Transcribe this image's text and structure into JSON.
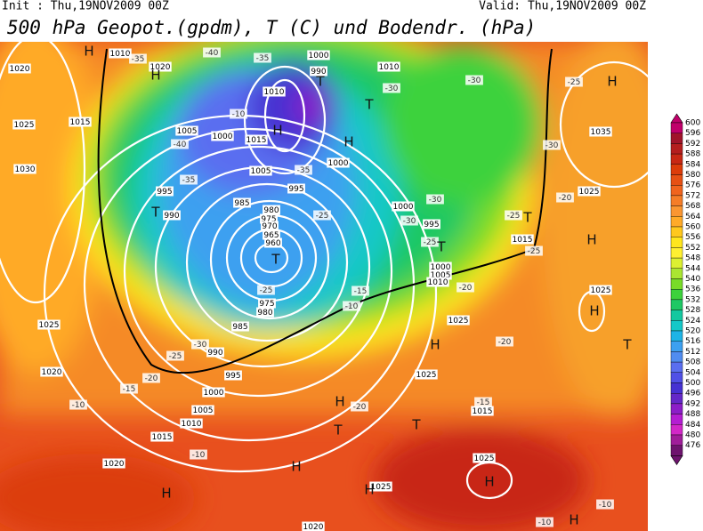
{
  "header": {
    "init": "Init : Thu,19NOV2009 00Z",
    "valid": "Valid: Thu,19NOV2009 00Z",
    "title": "500 hPa Geopot.(gpdm), T (C) und Bodendr. (hPa)"
  },
  "colorbar": {
    "levels": [
      600,
      596,
      592,
      588,
      584,
      580,
      576,
      572,
      568,
      564,
      560,
      556,
      552,
      548,
      544,
      540,
      536,
      532,
      528,
      524,
      520,
      516,
      512,
      508,
      504,
      500,
      496,
      492,
      488,
      484,
      480,
      476
    ],
    "colors": [
      "#c0006a",
      "#a0142a",
      "#b41e1e",
      "#c82814",
      "#dc3c0a",
      "#e65014",
      "#f0641e",
      "#f57d28",
      "#fa9632",
      "#ffaa28",
      "#ffc81e",
      "#ffe61e",
      "#fff032",
      "#dcf032",
      "#aae632",
      "#78dc28",
      "#3cd23c",
      "#1ec864",
      "#14c8a0",
      "#14c8c8",
      "#1eb4e6",
      "#3ca0f0",
      "#508cf0",
      "#5a6ef0",
      "#5050e6",
      "#4632d2",
      "#6428c8",
      "#8c1ec8",
      "#b41ed2",
      "#d228c8",
      "#a01e9a",
      "#6e146e"
    ]
  },
  "map": {
    "pressure_labels": [
      "1010",
      "1020",
      "1020",
      "1025",
      "1015",
      "1030",
      "1005",
      "1000",
      "1015",
      "1010",
      "1000",
      "990",
      "1010",
      "1000",
      "1005",
      "995",
      "995",
      "990",
      "985",
      "980",
      "975",
      "970",
      "965",
      "960",
      "975",
      "980",
      "985",
      "990",
      "995",
      "1000",
      "1005",
      "1010",
      "1015",
      "1020",
      "1025",
      "1020",
      "1000",
      "995",
      "1000",
      "1005",
      "1010",
      "1015",
      "1025",
      "1025",
      "1025",
      "1025",
      "1035",
      "1025",
      "1025",
      "1015",
      "1020"
    ],
    "temperature_labels": [
      "-35",
      "-40",
      "-35",
      "-30",
      "-30",
      "-25",
      "-10",
      "-40",
      "-35",
      "-35",
      "-30",
      "-20",
      "-25",
      "-30",
      "-30",
      "-25",
      "-25",
      "-25",
      "-25",
      "-20",
      "-15",
      "-10",
      "-30",
      "-25",
      "-20",
      "-15",
      "-10",
      "-20",
      "-10",
      "-15",
      "-20",
      "-10",
      "-10"
    ],
    "centers": [
      "H",
      "H",
      "H",
      "T",
      "T",
      "H",
      "T",
      "T",
      "T",
      "T",
      "H",
      "H",
      "T",
      "H",
      "H",
      "T",
      "T",
      "H",
      "H",
      "H",
      "H",
      "H",
      "H"
    ]
  }
}
